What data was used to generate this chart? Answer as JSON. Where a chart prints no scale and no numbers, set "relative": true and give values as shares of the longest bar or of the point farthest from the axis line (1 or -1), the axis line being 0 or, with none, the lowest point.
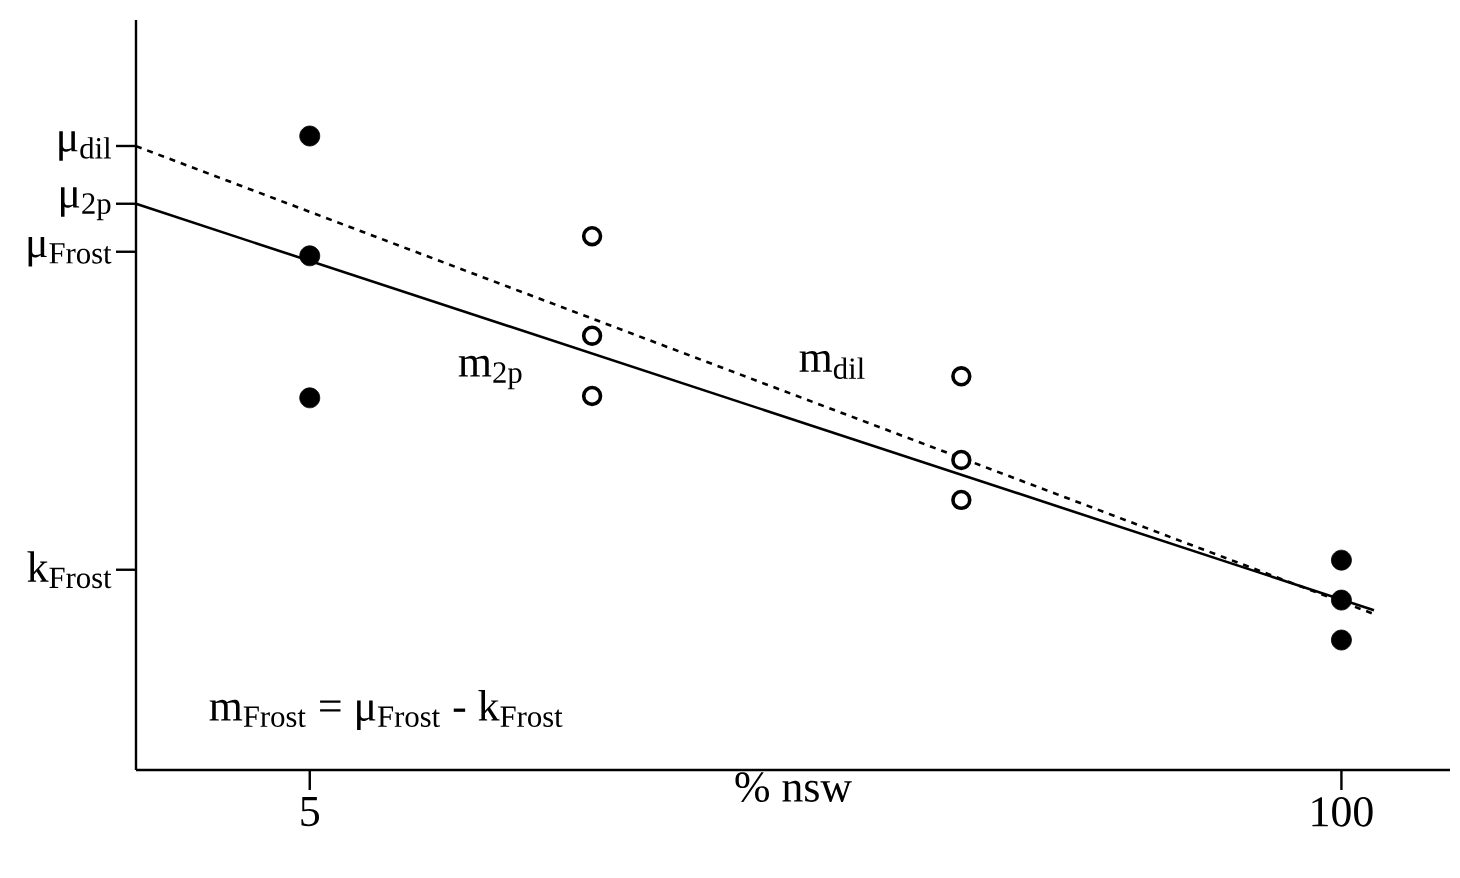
{
  "chart_data": {
    "type": "scatter",
    "relative": true,
    "xlabel": "% nsw",
    "xlim": [
      -11,
      110
    ],
    "xticks": [
      5,
      100
    ],
    "series": [
      {
        "marker": "circle",
        "color": "#000000",
        "x": [
          5,
          5,
          5,
          100,
          100,
          100
        ],
        "values": [
          1,
          0.811,
          0.587,
          0.331,
          0.268,
          0.205
        ]
      },
      {
        "marker": "open circle",
        "color": "#000000",
        "x": [
          31,
          31,
          31,
          65,
          65,
          65
        ],
        "values": [
          0.842,
          0.685,
          0.59,
          0.621,
          0.489,
          0.426
        ]
      },
      {
        "type": "line",
        "line_style": "solid",
        "color": "#000000",
        "x": [
          -11,
          103
        ],
        "values": [
          0.893,
          0.252
        ]
      },
      {
        "type": "line",
        "line_style": "dashed",
        "color": "#000000",
        "x": [
          -11,
          103
        ],
        "values": [
          0.984,
          0.246
        ]
      }
    ],
    "annotations": [
      "μ$_{dil}$",
      "μ$_{2p}$",
      "μ$_{Frost}$",
      "k$_{Frost}$",
      "m$_{2p}$",
      "m$_{dil}$",
      "m$_{Frost}$ = μ$_{Frost}$ - k$_{Frost}$"
    ]
  }
}
